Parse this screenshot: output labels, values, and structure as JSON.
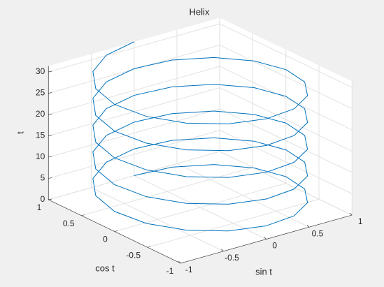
{
  "chart_data": {
    "type": "line3d",
    "title": "Helix",
    "xlabel": "sin t",
    "ylabel": "cos t",
    "zlabel": "t",
    "color": "#0072bd",
    "x": [
      0,
      0.383,
      0.707,
      0.924,
      1,
      0.924,
      0.707,
      0.383,
      0,
      -0.383,
      -0.707,
      -0.924,
      -1,
      -0.924,
      -0.707,
      -0.383,
      0,
      0.383,
      0.707,
      0.924,
      1,
      0.924,
      0.707,
      0.383,
      0,
      -0.383,
      -0.707,
      -0.924,
      -1,
      -0.924,
      -0.707,
      -0.383,
      0,
      0.383,
      0.707,
      0.924,
      1,
      0.924,
      0.707,
      0.383,
      0,
      -0.383,
      -0.707,
      -0.924,
      -1,
      -0.924,
      -0.707,
      -0.383,
      0,
      0.383,
      0.707,
      0.924,
      1,
      0.924,
      0.707,
      0.383,
      0,
      -0.383,
      -0.707,
      -0.924,
      -1,
      -0.924,
      -0.707,
      -0.383,
      0,
      0.383,
      0.707,
      0.924,
      1,
      0.924,
      0.707,
      0.383,
      0,
      -0.383,
      -0.707,
      -0.924,
      -1,
      -0.924,
      -0.707,
      -0.383,
      0
    ],
    "y": [
      1,
      0.924,
      0.707,
      0.383,
      0,
      -0.383,
      -0.707,
      -0.924,
      -1,
      -0.924,
      -0.707,
      -0.383,
      0,
      0.383,
      0.707,
      0.924,
      1,
      0.924,
      0.707,
      0.383,
      0,
      -0.383,
      -0.707,
      -0.924,
      -1,
      -0.924,
      -0.707,
      -0.383,
      0,
      0.383,
      0.707,
      0.924,
      1,
      0.924,
      0.707,
      0.383,
      0,
      -0.383,
      -0.707,
      -0.924,
      -1,
      -0.924,
      -0.707,
      -0.383,
      0,
      0.383,
      0.707,
      0.924,
      1,
      0.924,
      0.707,
      0.383,
      0,
      -0.383,
      -0.707,
      -0.924,
      -1,
      -0.924,
      -0.707,
      -0.383,
      0,
      0.383,
      0.707,
      0.924,
      1,
      0.924,
      0.707,
      0.383,
      0,
      -0.383,
      -0.707,
      -0.924,
      -1,
      -0.924,
      -0.707,
      -0.383,
      0,
      0.383,
      0.707,
      0.924,
      1
    ],
    "z": [
      0,
      0.39,
      0.79,
      1.18,
      1.57,
      1.96,
      2.36,
      2.75,
      3.14,
      3.53,
      3.93,
      4.32,
      4.71,
      5.11,
      5.5,
      5.89,
      6.28,
      6.68,
      7.07,
      7.46,
      7.85,
      8.25,
      8.64,
      9.03,
      9.42,
      9.82,
      10.21,
      10.6,
      11,
      11.39,
      11.78,
      12.17,
      12.57,
      12.96,
      13.35,
      13.74,
      14.14,
      14.53,
      14.92,
      15.32,
      15.71,
      16.1,
      16.49,
      16.89,
      17.28,
      17.67,
      18.06,
      18.46,
      18.85,
      19.24,
      19.63,
      20.03,
      20.42,
      20.81,
      21.21,
      21.6,
      21.99,
      22.38,
      22.78,
      23.17,
      23.56,
      23.95,
      24.35,
      24.74,
      25.13,
      25.53,
      25.92,
      26.31,
      26.7,
      27.1,
      27.49,
      27.88,
      28.27,
      28.67,
      29.06,
      29.45,
      29.85,
      30.24,
      30.63,
      31.02,
      31.42
    ],
    "xlim": [
      -1,
      1
    ],
    "ylim": [
      -1,
      1
    ],
    "zlim": [
      0,
      31.4
    ],
    "xticks": [
      -1,
      -0.5,
      0,
      0.5,
      1
    ],
    "yticks": [
      -1,
      -0.5,
      0,
      0.5,
      1
    ],
    "zticks": [
      0,
      5,
      10,
      15,
      20,
      25,
      30
    ],
    "grid": true
  }
}
